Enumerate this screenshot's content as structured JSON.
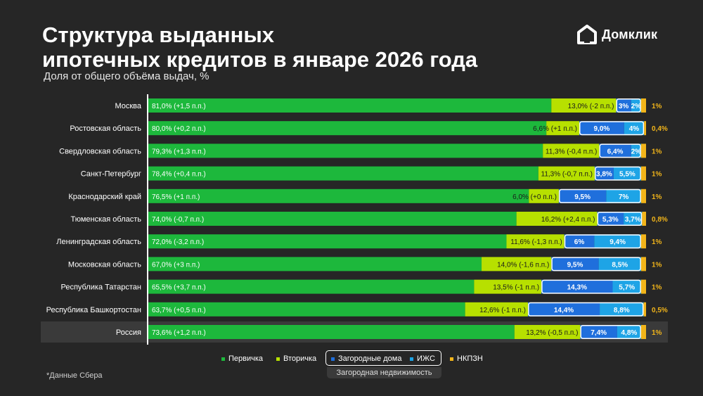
{
  "header": {
    "title_line1": "Структура выданных",
    "title_line2": "ипотечных кредитов в январе 2026 года",
    "subtitle": "Доля от общего объёма выдач, %",
    "logo": "Домклик"
  },
  "footnote": "*Данные Сбера",
  "legend": {
    "items": [
      "Первичка",
      "Вторичка",
      "Загородные дома",
      "ИЖС",
      "НКПЗН"
    ],
    "group_label": "Загородная недвижимость"
  },
  "colors": {
    "primary": "#1db83c",
    "secondary": "#b7e000",
    "country_houses": "#1f6fdc",
    "izhs": "#1ea4e6",
    "nkpzn": "#f2b51a",
    "background": "#262626"
  },
  "chart_data": {
    "type": "bar",
    "stacked": true,
    "orientation": "horizontal",
    "xlim": [
      0,
      100
    ],
    "categories": [
      "Москва",
      "Ростовская область",
      "Свердловская область",
      "Санкт-Петербург",
      "Краснодарский край",
      "Тюменская область",
      "Ленинградская область",
      "Московская область",
      "Республика Татарстан",
      "Республика Башкортостан",
      "Россия"
    ],
    "series": [
      {
        "name": "Первичка",
        "values": [
          81.0,
          80.0,
          79.3,
          78.4,
          76.5,
          74.0,
          72.0,
          67.0,
          65.5,
          63.7,
          73.6
        ],
        "labels": [
          "81,0% (+1,5 п.п.)",
          "80,0% (+0,2 п.п.)",
          "79,3% (+1,3 п.п.)",
          "78,4% (+0,4 п.п.)",
          "76,5% (+1 п.п.)",
          "74,0% (-0,7 п.п.)",
          "72,0% (-3,2 п.п.)",
          "67,0% (+3 п.п.)",
          "65,5% (+3,7 п.п.)",
          "63,7% (+0,5 п.п.)",
          "73,6% (+1,2 п.п.)"
        ]
      },
      {
        "name": "Вторичка",
        "values": [
          13.0,
          6.6,
          11.3,
          11.3,
          6.0,
          16.2,
          11.6,
          14.0,
          13.5,
          12.6,
          13.2
        ],
        "labels": [
          "13,0% (-2 п.п.)",
          "6,6% (+1 п.п.)",
          "11,3% (-0,4 п.п.)",
          "11,3% (-0,7 п.п.)",
          "6,0% (+0 п.п.)",
          "16,2% (+2,4 п.п.)",
          "11,6% (-1,3 п.п.)",
          "14,0% (-1,6 п.п.)",
          "13,5% (-1 п.п.)",
          "12,6% (-1 п.п.)",
          "13,2% (-0,5 п.п.)"
        ]
      },
      {
        "name": "Загородные дома",
        "values": [
          3,
          9.0,
          6.4,
          3.8,
          9.5,
          5.3,
          6,
          9.5,
          14.3,
          14.4,
          7.4
        ],
        "labels": [
          "3%",
          "9,0%",
          "6,4%",
          "3,8%",
          "9,5%",
          "5,3%",
          "6%",
          "9,5%",
          "14,3%",
          "14,4%",
          "7,4%"
        ]
      },
      {
        "name": "ИЖС",
        "values": [
          2,
          4,
          2,
          5.5,
          7,
          3.7,
          9.4,
          8.5,
          5.7,
          8.8,
          4.8
        ],
        "labels": [
          "2%",
          "4%",
          "2%",
          "5,5%",
          "7%",
          "3,7%",
          "9,4%",
          "8,5%",
          "5,7%",
          "8,8%",
          "4,8%"
        ]
      },
      {
        "name": "НКПЗН",
        "values": [
          1,
          0.4,
          1,
          1,
          1,
          0.8,
          1,
          1,
          1,
          0.5,
          1
        ],
        "labels": [
          "1%",
          "0,4%",
          "1%",
          "1%",
          "1%",
          "0,8%",
          "1%",
          "1%",
          "1%",
          "0,5%",
          "1%"
        ]
      }
    ],
    "highlight_category": "Россия"
  }
}
